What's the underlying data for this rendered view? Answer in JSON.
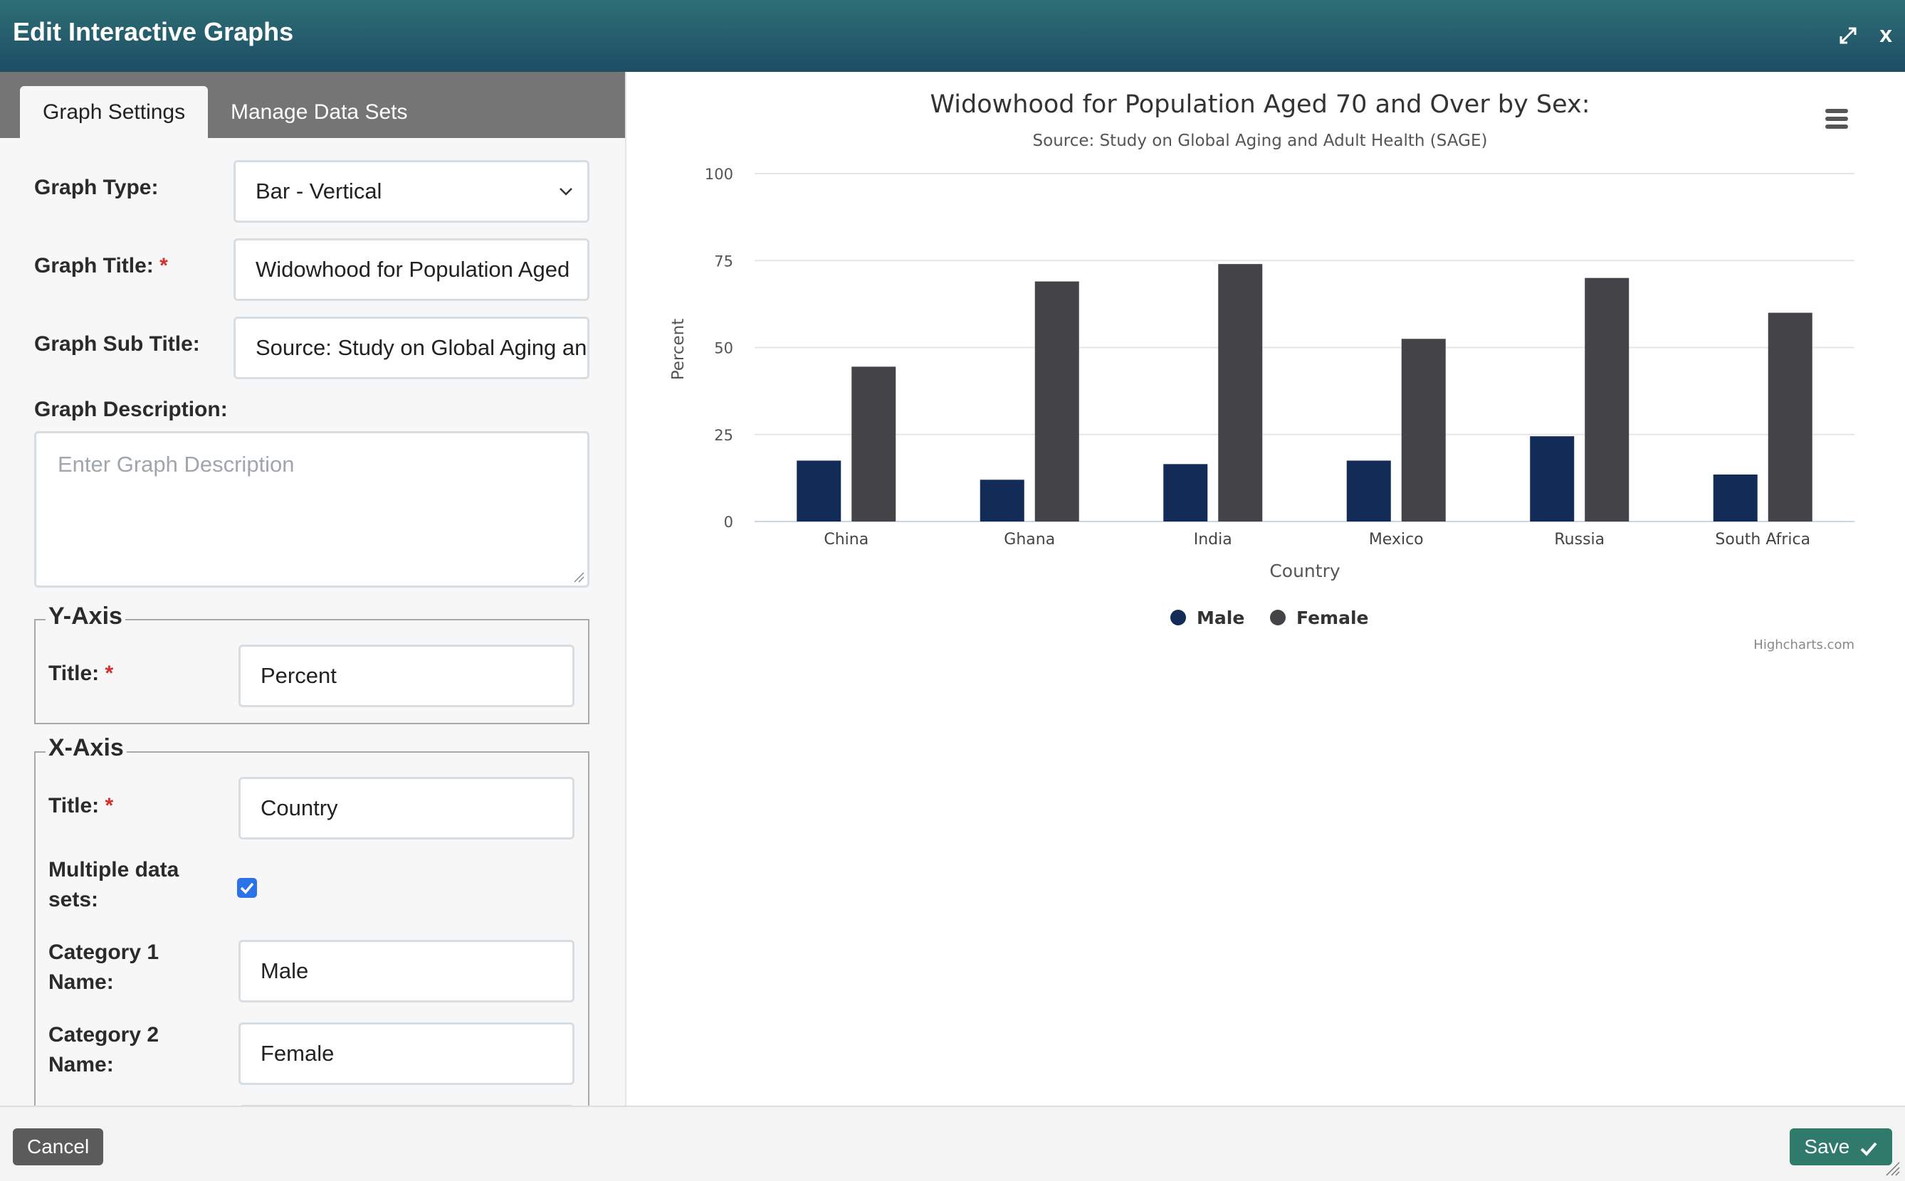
{
  "dialog": {
    "title": "Edit Interactive Graphs",
    "close_label": "x"
  },
  "tabs": [
    {
      "label": "Graph Settings",
      "active": true
    },
    {
      "label": "Manage Data Sets",
      "active": false
    }
  ],
  "form": {
    "graph_type_label": "Graph Type:",
    "graph_type_value": "Bar - Vertical",
    "graph_title_label": "Graph Title:",
    "graph_title_value": "Widowhood for Population Aged",
    "graph_subtitle_label": "Graph Sub Title:",
    "graph_subtitle_value": "Source: Study on Global Aging and",
    "graph_description_label": "Graph Description:",
    "graph_description_placeholder": "Enter Graph Description",
    "required_mark": "*",
    "y_axis": {
      "legend": "Y-Axis",
      "title_label": "Title:",
      "title_value": "Percent"
    },
    "x_axis": {
      "legend": "X-Axis",
      "title_label": "Title:",
      "title_value": "Country",
      "multiple_label": "Multiple data sets:",
      "multiple_checked": true,
      "category1_label": "Category 1 Name:",
      "category1_value": "Male",
      "category2_label": "Category 2 Name:",
      "category2_value": "Female"
    }
  },
  "chart_data": {
    "type": "bar",
    "title": "Widowhood for Population Aged 70 and Over by Sex:",
    "subtitle": "Source: Study on Global Aging and Adult Health (SAGE)",
    "xlabel": "Country",
    "ylabel": "Percent",
    "ylim": [
      0,
      100
    ],
    "yticks": [
      0,
      25,
      50,
      75,
      100
    ],
    "grid": true,
    "legend_position": "bottom-center",
    "categories": [
      "China",
      "Ghana",
      "India",
      "Mexico",
      "Russia",
      "South Africa"
    ],
    "series": [
      {
        "name": "Male",
        "color": "#122c57",
        "values": [
          17.5,
          12,
          16.5,
          17.5,
          24.5,
          13.5
        ]
      },
      {
        "name": "Female",
        "color": "#434348",
        "values": [
          44.5,
          69,
          74,
          52.5,
          70,
          60
        ]
      }
    ],
    "credits": "Highcharts.com"
  },
  "footer": {
    "cancel_label": "Cancel",
    "save_label": "Save"
  }
}
